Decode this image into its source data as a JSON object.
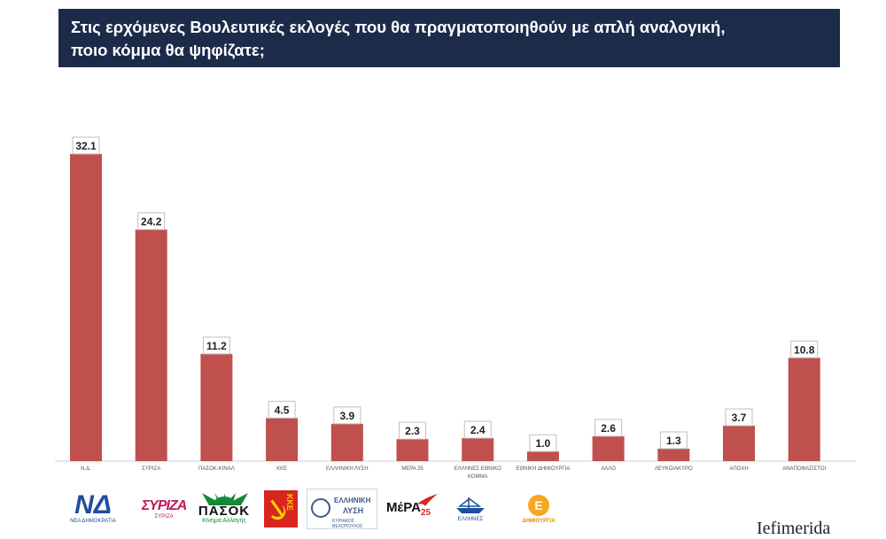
{
  "title": {
    "line1": "Στις ερχόμενες Βουλευτικές εκλογές που θα πραγματοποιηθούν με απλή αναλογική,",
    "line2": "ποιο κόμμα θα ψηφίζατε;"
  },
  "colors": {
    "banner": "#1c2b4a",
    "bar": "#c0504d",
    "axis": "#d0d0d0"
  },
  "chart_data": {
    "type": "bar",
    "categories": [
      "Ν.Δ.",
      "ΣΥΡΙΖΑ",
      "ΠΑΣΟΚ-ΚΙΝΑΛ",
      "ΚΚΕ",
      "ΕΛΛΗΝΙΚΗ ΛΥΣΗ",
      "ΜΕΡΑ 25",
      "ΕΛΛΗΝΕΣ ΕΘΝΙΚΟ ΚΟΜΜΑ",
      "ΕΘΝΙΚΗ ΔΗΜΙΟΥΡΓΙΑ",
      "ΑΛΛΟ",
      "ΛΕΥΚΟ/ΑΚΥΡΟ",
      "ΑΠΟΧΗ",
      "ΑΝΑΠΟΦΑΣΙΣΤΟΙ"
    ],
    "values": [
      32.1,
      24.2,
      11.2,
      4.5,
      3.9,
      2.3,
      2.4,
      1.0,
      2.6,
      1.3,
      3.7,
      10.8
    ],
    "value_labels": [
      "32.1",
      "24.2",
      "11.2",
      "4.5",
      "3.9",
      "2.3",
      "2.4",
      "1.0",
      "2.6",
      "1.3",
      "3.7",
      "10.8"
    ],
    "xlabel": "",
    "ylabel": "",
    "ylim": [
      0,
      35
    ],
    "grid": false,
    "legend": "none"
  },
  "logos": {
    "nd": {
      "mark": "ΝΔ",
      "sub": "ΝΕΑ ΔΗΜΟΚΡΑΤΙΑ"
    },
    "syriza": {
      "mark": "ΣΥΡΙΖΑ",
      "sub": "ΣΥΡΙΖΑ"
    },
    "pasok": {
      "mark": "ΠΑΣΟΚ",
      "sub": "Κίνημα Αλλαγής"
    },
    "kke": {
      "mark": "ΚΚΕ"
    },
    "xa": {
      "t1": "ΕΛΛΗΝΙΚΗ",
      "t2": "ΛΥΣΗ",
      "t3": "ΚΥΡΙΑΚΟΣ ΒΕΛΟΠΟΥΛΟΣ"
    },
    "mera": {
      "mark": "ΜέΡΑ",
      "num": "25"
    },
    "el": {
      "sub": "ΕΛΛΗΝΕΣ"
    },
    "ed": {
      "mark": "Ε",
      "sub": "ΔΗΜΙΟΥΡΓΙΑ"
    }
  },
  "watermark": "Iefimerida"
}
